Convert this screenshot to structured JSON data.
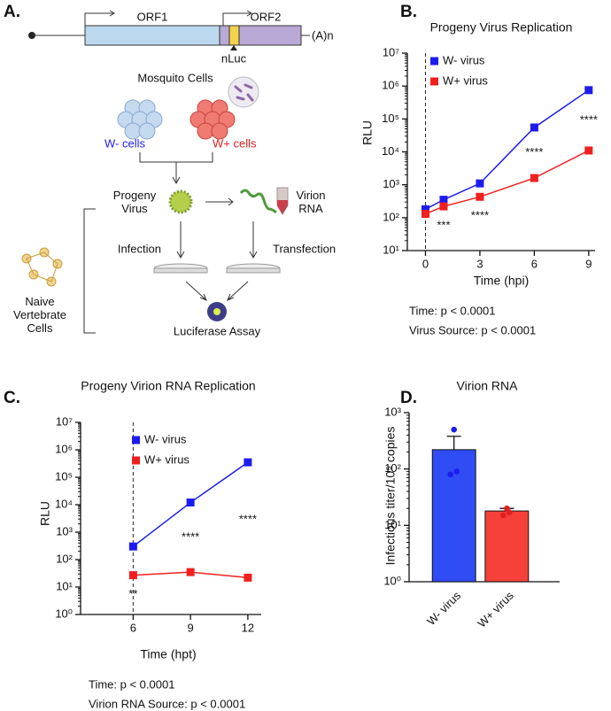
{
  "panel_labels": [
    "A.",
    "B.",
    "C.",
    "D."
  ],
  "diagram": {
    "orf1": "ORF1",
    "orf2": "ORF2",
    "polya": "(A)n",
    "nluc": "nLuc",
    "mosquito_cells": "Mosquito Cells",
    "w_minus_cells": "W- cells",
    "w_plus_cells": "W+ cells",
    "progeny_virus": [
      "Progeny",
      "Virus"
    ],
    "virion_rna": [
      "Virion",
      "RNA"
    ],
    "infection": "Infection",
    "transfection": "Transfection",
    "naive_cells": [
      "Naive",
      "Vertebrate",
      "Cells"
    ],
    "luciferase_assay": "Luciferase Assay"
  },
  "chart_data": [
    {
      "type": "line",
      "title": "Progeny Virus Replication",
      "xlabel": "Time (hpi)",
      "ylabel": "RLU",
      "x": [
        0,
        1,
        3,
        6,
        9
      ],
      "xlim": [
        -1,
        9.35
      ],
      "xticks": [
        0,
        3,
        6,
        9
      ],
      "ylim": [
        10,
        10000000
      ],
      "yscale": "log",
      "yticks": [
        {
          "value": 10,
          "label": "10¹"
        },
        {
          "value": 100,
          "label": "10²"
        },
        {
          "value": 1000,
          "label": "10³"
        },
        {
          "value": 10000,
          "label": "10⁴"
        },
        {
          "value": 100000,
          "label": "10⁵"
        },
        {
          "value": 1000000,
          "label": "10⁶"
        },
        {
          "value": 10000000,
          "label": "10⁷"
        }
      ],
      "vline": 0,
      "legend": "upper left",
      "series": [
        {
          "name": "W- virus",
          "color": "#1c1cf0",
          "values": [
            180,
            350,
            1100,
            55000,
            750000
          ]
        },
        {
          "name": "W+ virus",
          "color": "#f02020",
          "values": [
            130,
            220,
            430,
            1600,
            11000
          ]
        }
      ],
      "annotations": [
        {
          "x": 1,
          "text": "***"
        },
        {
          "x": 3,
          "text": "****"
        },
        {
          "x": 6,
          "text": "****"
        },
        {
          "x": 9,
          "text": "****"
        }
      ],
      "stats": [
        "Time: p < 0.0001",
        "Virus Source: p < 0.0001"
      ]
    },
    {
      "type": "line",
      "title": "Progeny Virion RNA Replication",
      "xlabel": "Time (hpt)",
      "ylabel": "RLU",
      "x": [
        6,
        9,
        12
      ],
      "xlim": [
        3.25,
        12.7
      ],
      "xticks": [
        6,
        9,
        12
      ],
      "ylim": [
        1,
        10000000
      ],
      "yscale": "log",
      "yticks": [
        {
          "value": 1,
          "label": "10⁰"
        },
        {
          "value": 10,
          "label": "10¹"
        },
        {
          "value": 100,
          "label": "10²"
        },
        {
          "value": 1000,
          "label": "10³"
        },
        {
          "value": 10000,
          "label": "10⁴"
        },
        {
          "value": 100000,
          "label": "10⁵"
        },
        {
          "value": 1000000,
          "label": "10⁶"
        },
        {
          "value": 10000000,
          "label": "10⁷"
        }
      ],
      "vline": 6,
      "legend": "upper left",
      "series": [
        {
          "name": "W- virus",
          "color": "#1c1cf0",
          "values": [
            300,
            12000,
            350000
          ]
        },
        {
          "name": "W+ virus",
          "color": "#f02020",
          "values": [
            27,
            35,
            22
          ]
        }
      ],
      "annotations": [
        {
          "x": 6,
          "text": "**"
        },
        {
          "x": 9,
          "text": "****"
        },
        {
          "x": 12,
          "text": "****"
        }
      ],
      "stats": [
        "Time: p < 0.0001",
        "Virion RNA Source: p < 0.0001"
      ]
    },
    {
      "type": "bar",
      "title": "Virion RNA",
      "ylabel": "Infectious titer/10⁵ copies",
      "categories": [
        "W- virus",
        "W+ virus"
      ],
      "values": [
        220,
        18
      ],
      "errors": [
        160,
        2
      ],
      "points": [
        [
          500,
          90,
          80
        ],
        [
          20,
          17,
          15
        ]
      ],
      "colors": [
        "#2f4cf5",
        "#f5413a"
      ],
      "point_colors": [
        "#1c1cf0",
        "#e02020"
      ],
      "ylim": [
        1,
        1000
      ],
      "yscale": "log",
      "yticks": [
        {
          "value": 1,
          "label": "10⁰"
        },
        {
          "value": 10,
          "label": "10¹"
        },
        {
          "value": 100,
          "label": "10²"
        },
        {
          "value": 1000,
          "label": "10³"
        }
      ]
    }
  ]
}
